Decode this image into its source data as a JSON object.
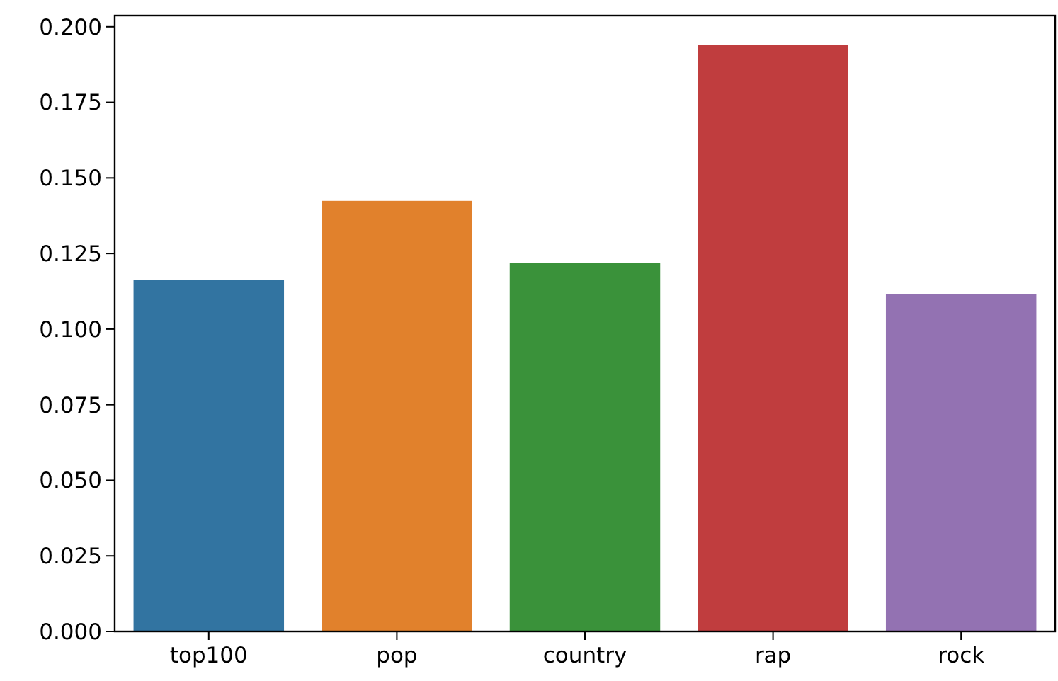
{
  "chart_data": {
    "type": "bar",
    "categories": [
      "top100",
      "pop",
      "country",
      "rap",
      "rock"
    ],
    "values": [
      0.1162,
      0.1424,
      0.1218,
      0.1939,
      0.1115
    ],
    "colors": [
      "#3274a1",
      "#e1812c",
      "#3a923a",
      "#c03d3e",
      "#9372b2"
    ],
    "ylim": [
      0,
      0.2037
    ],
    "yticks": [
      {
        "value": 0,
        "label": "0.000"
      },
      {
        "value": 0.025,
        "label": "0.025"
      },
      {
        "value": 0.05,
        "label": "0.050"
      },
      {
        "value": 0.075,
        "label": "0.075"
      },
      {
        "value": 0.1,
        "label": "0.100"
      },
      {
        "value": 0.125,
        "label": "0.125"
      },
      {
        "value": 0.15,
        "label": "0.150"
      },
      {
        "value": 0.175,
        "label": "0.175"
      },
      {
        "value": 0.2,
        "label": "0.200"
      }
    ],
    "grid": false
  }
}
